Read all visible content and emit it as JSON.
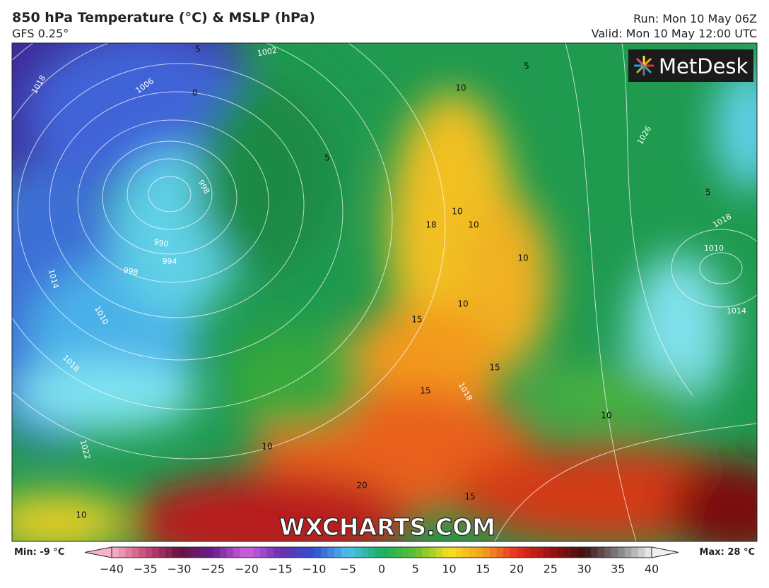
{
  "header": {
    "title": "850 hPa Temperature (°C) & MSLP (hPa)",
    "model": "GFS 0.25°",
    "run": "Run: Mon 10 May 06Z",
    "valid": "Valid: Mon 10 May 12:00 UTC"
  },
  "logo": "MetDesk",
  "watermark": "WXCHARTS.COM",
  "legend": {
    "min": "Min: -9 °C",
    "max": "Max: 28 °C",
    "ticks": [
      "−40",
      "−35",
      "−30",
      "−25",
      "−20",
      "−15",
      "−10",
      "−5",
      "0",
      "5",
      "10",
      "15",
      "20",
      "25",
      "30",
      "35",
      "40"
    ]
  },
  "map": {
    "labels": [
      "1018",
      "1006",
      "1002",
      "998",
      "990",
      "994",
      "998",
      "1014",
      "1010",
      "1018",
      "1022",
      "1026",
      "1018",
      "1014",
      "1010",
      "1018",
      "0",
      "5",
      "5",
      "10",
      "10",
      "10",
      "18",
      "10",
      "10",
      "15",
      "15",
      "15",
      "10",
      "10",
      "20",
      "15",
      "10",
      "5",
      "5"
    ]
  }
}
